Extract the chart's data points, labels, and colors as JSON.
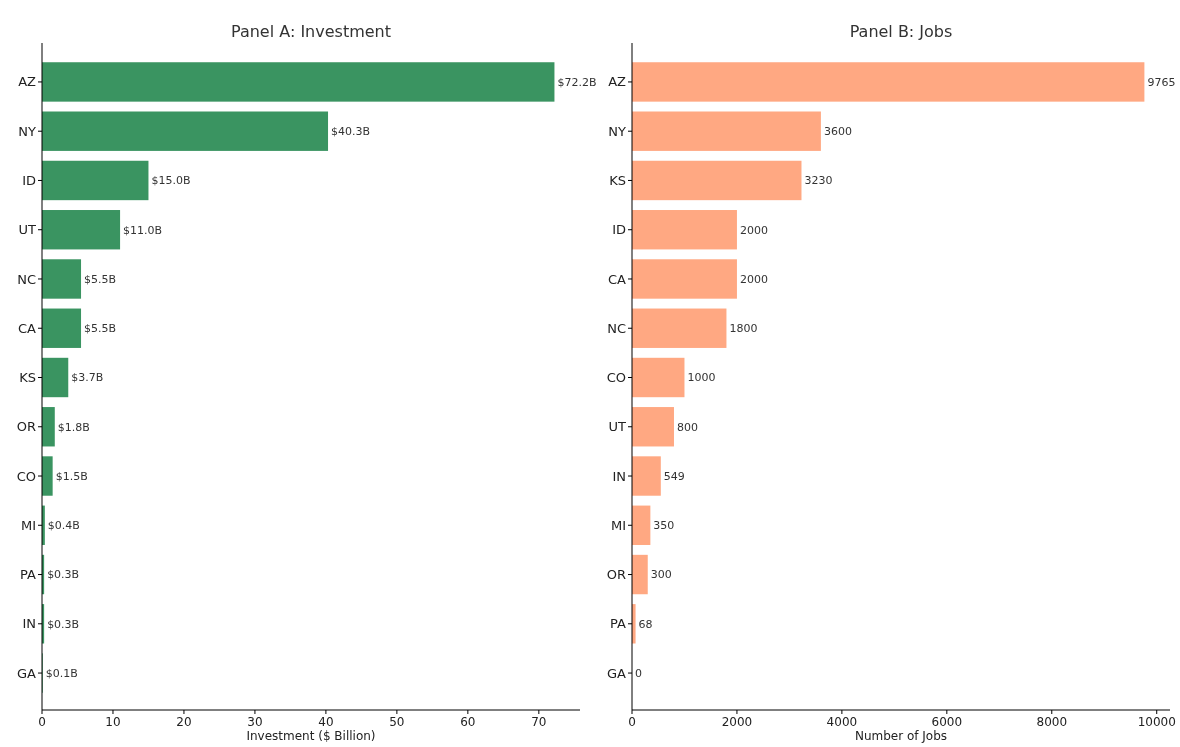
{
  "chart_data": [
    {
      "type": "bar",
      "orientation": "horizontal",
      "title": "Panel A: Investment",
      "xlabel": "Investment ($ Billion)",
      "categories": [
        "AZ",
        "NY",
        "ID",
        "UT",
        "NC",
        "CA",
        "KS",
        "OR",
        "CO",
        "MI",
        "PA",
        "IN",
        "GA"
      ],
      "values": [
        72.2,
        40.3,
        15.0,
        11.0,
        5.5,
        5.5,
        3.7,
        1.8,
        1.5,
        0.4,
        0.3,
        0.3,
        0.1
      ],
      "value_labels": [
        "$72.2B",
        "$40.3B",
        "$15.0B",
        "$11.0B",
        "$5.5B",
        "$5.5B",
        "$3.7B",
        "$1.8B",
        "$1.5B",
        "$0.4B",
        "$0.3B",
        "$0.3B",
        "$0.1B"
      ],
      "color": "#3a9461",
      "xlim": [
        0,
        75.8
      ],
      "xticks": [
        0,
        10,
        20,
        30,
        40,
        50,
        60,
        70
      ],
      "grid": false
    },
    {
      "type": "bar",
      "orientation": "horizontal",
      "title": "Panel B: Jobs",
      "xlabel": "Number of Jobs",
      "categories": [
        "AZ",
        "NY",
        "KS",
        "ID",
        "CA",
        "NC",
        "CO",
        "UT",
        "IN",
        "MI",
        "OR",
        "PA",
        "GA"
      ],
      "values": [
        9765,
        3600,
        3230,
        2000,
        2000,
        1800,
        1000,
        800,
        549,
        350,
        300,
        68,
        0
      ],
      "data_labels": true,
      "color": "#ffa882",
      "xlim": [
        0,
        10253
      ],
      "xticks": [
        0,
        2000,
        4000,
        6000,
        8000,
        10000
      ],
      "grid": false
    }
  ]
}
